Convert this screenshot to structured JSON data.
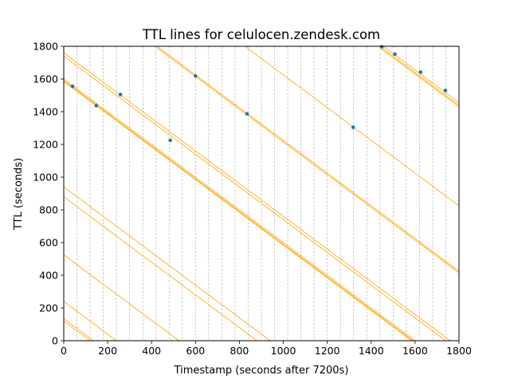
{
  "chart_data": {
    "type": "line",
    "title": "TTL lines for celulocen.zendesk.com",
    "xlabel": "Timestamp (seconds after 7200s)",
    "ylabel": "TTL (seconds)",
    "xlim": [
      0,
      1800
    ],
    "ylim": [
      0,
      1800
    ],
    "x_ticks": [
      "0",
      "200",
      "400",
      "600",
      "800",
      "1000",
      "1200",
      "1400",
      "1600",
      "1800"
    ],
    "y_ticks": [
      "0",
      "200",
      "400",
      "600",
      "800",
      "1000",
      "1200",
      "1400",
      "1600",
      "1800"
    ],
    "vertical_gridlines_x": [
      0,
      60,
      120,
      180,
      240,
      300,
      360,
      420,
      480,
      540,
      600,
      660,
      720,
      780,
      840,
      900,
      960,
      1020,
      1080,
      1140,
      1200,
      1260,
      1320,
      1380,
      1440,
      1500,
      1560,
      1620,
      1680,
      1740,
      1800
    ],
    "grid": "vertical dashed",
    "legend": "none",
    "line_color": "#ffa500",
    "point_color": "#1f77b4",
    "ttl_lines": [
      {
        "intercept": 1760,
        "x_start": 0
      },
      {
        "intercept": 1740,
        "x_start": 0
      },
      {
        "intercept": 1600,
        "x_start": 0
      },
      {
        "intercept": 1590,
        "x_start": 0
      },
      {
        "intercept": 1585,
        "x_start": 0
      },
      {
        "intercept": 940,
        "x_start": 0
      },
      {
        "intercept": 880,
        "x_start": 0
      },
      {
        "intercept": 525,
        "x_start": 0
      },
      {
        "intercept": 240,
        "x_start": 0
      },
      {
        "intercept": 135,
        "x_start": 0
      },
      {
        "intercept": 120,
        "x_start": 0
      },
      {
        "intercept": 2625,
        "x_start": 800
      },
      {
        "intercept": 2225,
        "x_start": 380
      },
      {
        "intercept": 2215,
        "x_start": 380
      },
      {
        "intercept": 3255,
        "x_start": 1440
      },
      {
        "intercept": 3240,
        "x_start": 1440
      },
      {
        "intercept": 3230,
        "x_start": 1440
      }
    ],
    "points": [
      {
        "x": 40,
        "y": 1555
      },
      {
        "x": 148,
        "y": 1437
      },
      {
        "x": 258,
        "y": 1505
      },
      {
        "x": 485,
        "y": 1225
      },
      {
        "x": 600,
        "y": 1618
      },
      {
        "x": 835,
        "y": 1387
      },
      {
        "x": 1318,
        "y": 1305
      },
      {
        "x": 1448,
        "y": 1797
      },
      {
        "x": 1508,
        "y": 1752
      },
      {
        "x": 1625,
        "y": 1642
      },
      {
        "x": 1738,
        "y": 1530
      }
    ]
  }
}
